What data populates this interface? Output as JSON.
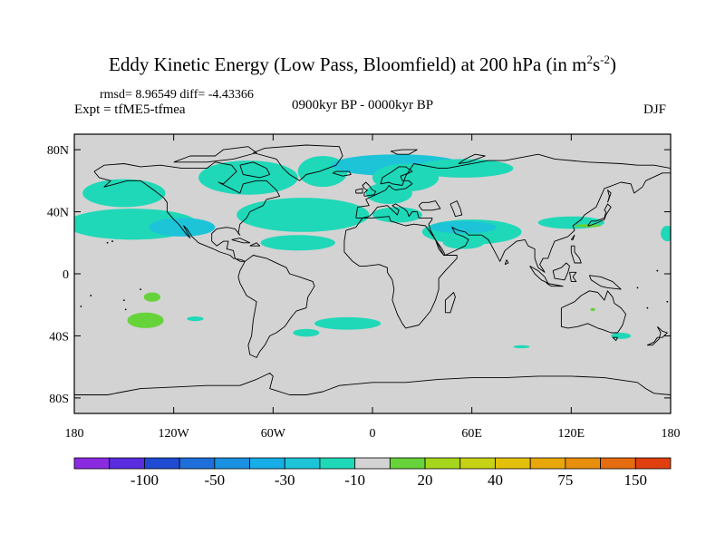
{
  "header": {
    "title_main": "Eddy Kinetic Energy (Low Pass, Bloomfield) at 200 hPa (in m",
    "title_sup1": "2",
    "title_mid": "s",
    "title_sup2": "-2",
    "title_end": ")",
    "stats": "rmsd= 8.96549 diff= -4.43366",
    "experiment": "Expt = tfME5-tfmea",
    "period": "0900kyr BP - 0000kyr BP",
    "season": "DJF"
  },
  "chart_data": {
    "type": "heatmap",
    "projection": "cylindrical equidistant",
    "background_color": "#d3d3d3",
    "xlim": [
      -180,
      180
    ],
    "ylim": [
      -90,
      90
    ],
    "x_ticks": [
      -180,
      -120,
      -60,
      0,
      60,
      120,
      180
    ],
    "x_tick_labels": [
      "180",
      "120W",
      "60W",
      "0",
      "60E",
      "120E",
      "180"
    ],
    "y_ticks": [
      80,
      40,
      0,
      -40,
      -80
    ],
    "y_tick_labels": [
      "80N",
      "40N",
      "0",
      "40S",
      "80S"
    ],
    "colorbar": {
      "colors": [
        "#8a2be2",
        "#5a2ce0",
        "#1f4bd2",
        "#1e6fd9",
        "#1a90e0",
        "#16aee6",
        "#1dc4d8",
        "#1fd8b8",
        "#d3d3d3",
        "#66d33a",
        "#a6d61c",
        "#c8d214",
        "#e3c00c",
        "#e8a80c",
        "#e88f0e",
        "#e66c10",
        "#e04010"
      ],
      "tick_labels": [
        "-100",
        "-50",
        "-30",
        "-10",
        "20",
        "40",
        "75",
        "150"
      ]
    },
    "regions": [
      {
        "name": "north-atlantic-core",
        "lon": -45,
        "lat": 37,
        "width": 22,
        "height": 8,
        "color": "#1e6fd9"
      },
      {
        "name": "north-atlantic-band",
        "lon": -48,
        "lat": 37,
        "width": 60,
        "height": 14,
        "color": "#1a90e0"
      },
      {
        "name": "north-atlantic-outer",
        "lon": -42,
        "lat": 38,
        "width": 80,
        "height": 22,
        "color": "#1fd8b8"
      },
      {
        "name": "north-pacific-band",
        "lon": -150,
        "lat": 30,
        "width": 65,
        "height": 12,
        "color": "#1a90e0"
      },
      {
        "name": "north-pacific-outer",
        "lon": -145,
        "lat": 32,
        "width": 80,
        "height": 20,
        "color": "#1fd8b8"
      },
      {
        "name": "alaska-pacific",
        "lon": -150,
        "lat": 52,
        "width": 50,
        "height": 18,
        "color": "#1fd8b8"
      },
      {
        "name": "east-pacific-jet",
        "lon": -115,
        "lat": 30,
        "width": 40,
        "height": 12,
        "color": "#1dc4d8"
      },
      {
        "name": "hudson-bay",
        "lon": -75,
        "lat": 62,
        "width": 60,
        "height": 22,
        "color": "#1fd8b8"
      },
      {
        "name": "greenland-sea",
        "lon": -30,
        "lat": 66,
        "width": 30,
        "height": 20,
        "color": "#1fd8b8"
      },
      {
        "name": "arctic-norway",
        "lon": 15,
        "lat": 70,
        "width": 80,
        "height": 14,
        "color": "#1dc4d8"
      },
      {
        "name": "scandinavia",
        "lon": 20,
        "lat": 62,
        "width": 40,
        "height": 18,
        "color": "#1fd8b8"
      },
      {
        "name": "barents",
        "lon": 55,
        "lat": 68,
        "width": 60,
        "height": 12,
        "color": "#1fd8b8"
      },
      {
        "name": "europe-north",
        "lon": 10,
        "lat": 52,
        "width": 28,
        "height": 14,
        "color": "#1fd8b8"
      },
      {
        "name": "mediterranean",
        "lon": 15,
        "lat": 38,
        "width": 30,
        "height": 10,
        "color": "#1fd8b8"
      },
      {
        "name": "subtropical-atlantic",
        "lon": -45,
        "lat": 20,
        "width": 45,
        "height": 10,
        "color": "#1fd8b8"
      },
      {
        "name": "middle-east-jet",
        "lon": 60,
        "lat": 27,
        "width": 60,
        "height": 16,
        "color": "#1fd8b8"
      },
      {
        "name": "middle-east-core",
        "lon": 55,
        "lat": 30,
        "width": 40,
        "height": 8,
        "color": "#1dc4d8"
      },
      {
        "name": "arabia-south",
        "lon": 55,
        "lat": 20,
        "width": 25,
        "height": 8,
        "color": "#1fd8b8"
      },
      {
        "name": "east-asia-jet",
        "lon": 120,
        "lat": 33,
        "width": 40,
        "height": 8,
        "color": "#1fd8b8"
      },
      {
        "name": "japan-green",
        "lon": 130,
        "lat": 31,
        "width": 16,
        "height": 2,
        "color": "#66d33a"
      },
      {
        "name": "west-pacific-edge",
        "lon": 178,
        "lat": 26,
        "width": 8,
        "height": 10,
        "color": "#1fd8b8"
      },
      {
        "name": "south-pacific-green-1",
        "lon": -137,
        "lat": -30,
        "width": 22,
        "height": 10,
        "color": "#66d33a"
      },
      {
        "name": "south-pacific-green-2",
        "lon": -133,
        "lat": -15,
        "width": 10,
        "height": 6,
        "color": "#66d33a"
      },
      {
        "name": "south-pacific-teal",
        "lon": -107,
        "lat": -29,
        "width": 10,
        "height": 3,
        "color": "#1fd8b8"
      },
      {
        "name": "south-atlantic-teal",
        "lon": -15,
        "lat": -32,
        "width": 40,
        "height": 8,
        "color": "#1fd8b8"
      },
      {
        "name": "south-atlantic-small",
        "lon": -40,
        "lat": -38,
        "width": 16,
        "height": 5,
        "color": "#1fd8b8"
      },
      {
        "name": "australia-green",
        "lon": 133,
        "lat": -23,
        "width": 3,
        "height": 2,
        "color": "#66d33a"
      },
      {
        "name": "tasman-teal",
        "lon": 150,
        "lat": -40,
        "width": 12,
        "height": 4,
        "color": "#1fd8b8"
      },
      {
        "name": "indian-ocean-teal",
        "lon": 90,
        "lat": -47,
        "width": 10,
        "height": 2,
        "color": "#1fd8b8"
      }
    ]
  }
}
